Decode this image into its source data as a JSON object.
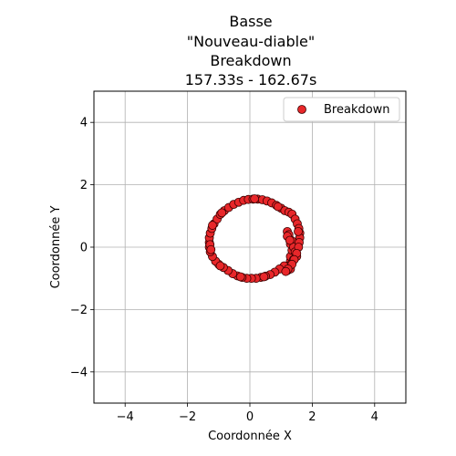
{
  "chart_data": {
    "type": "scatter",
    "title_lines": [
      "Basse",
      "\"Nouveau-diable\"",
      "Breakdown",
      "157.33s - 162.67s"
    ],
    "xlabel": "Coordonnée X",
    "ylabel": "Coordonnée Y",
    "xlim": [
      -5,
      5
    ],
    "ylim": [
      -5,
      5
    ],
    "xticks": [
      -4,
      -2,
      0,
      2,
      4
    ],
    "yticks": [
      -4,
      -2,
      0,
      2,
      4
    ],
    "xtick_labels": [
      "−4",
      "−2",
      "0",
      "2",
      "4"
    ],
    "ytick_labels": [
      "−4",
      "−2",
      "0",
      "2",
      "4"
    ],
    "grid": true,
    "legend_position": "top-right",
    "series": [
      {
        "name": "Breakdown",
        "color": "#e8272a",
        "edge_color": "#3a0000",
        "points": [
          [
            1.3,
            -0.45
          ],
          [
            1.25,
            -0.6
          ],
          [
            1.2,
            -0.75
          ],
          [
            1.3,
            -0.7
          ],
          [
            1.35,
            -0.5
          ],
          [
            1.3,
            -0.3
          ],
          [
            1.35,
            -0.1
          ],
          [
            1.3,
            0.1
          ],
          [
            1.25,
            0.3
          ],
          [
            1.2,
            0.5
          ],
          [
            1.25,
            0.4
          ],
          [
            1.35,
            0.2
          ],
          [
            1.4,
            0.0
          ],
          [
            1.45,
            -0.15
          ],
          [
            1.5,
            -0.3
          ],
          [
            1.4,
            -0.4
          ],
          [
            1.1,
            -0.6
          ],
          [
            0.95,
            -0.7
          ],
          [
            0.8,
            -0.8
          ],
          [
            0.65,
            -0.88
          ],
          [
            0.5,
            -0.93
          ],
          [
            0.35,
            -0.97
          ],
          [
            0.2,
            -1.0
          ],
          [
            0.05,
            -1.0
          ],
          [
            -0.1,
            -1.0
          ],
          [
            -0.25,
            -0.97
          ],
          [
            -0.4,
            -0.92
          ],
          [
            -0.55,
            -0.85
          ],
          [
            -0.7,
            -0.75
          ],
          [
            -0.85,
            -0.65
          ],
          [
            -1.0,
            -0.55
          ],
          [
            -1.1,
            -0.45
          ],
          [
            -1.2,
            -0.3
          ],
          [
            -1.27,
            -0.15
          ],
          [
            -1.3,
            0.0
          ],
          [
            -1.3,
            0.15
          ],
          [
            -1.3,
            0.3
          ],
          [
            -1.27,
            0.45
          ],
          [
            -1.22,
            0.6
          ],
          [
            -1.15,
            0.75
          ],
          [
            -1.05,
            0.9
          ],
          [
            -0.95,
            1.05
          ],
          [
            -0.82,
            1.17
          ],
          [
            -0.68,
            1.27
          ],
          [
            -0.52,
            1.37
          ],
          [
            -0.36,
            1.44
          ],
          [
            -0.2,
            1.5
          ],
          [
            -0.05,
            1.53
          ],
          [
            0.1,
            1.54
          ],
          [
            0.25,
            1.54
          ],
          [
            0.4,
            1.52
          ],
          [
            0.55,
            1.48
          ],
          [
            0.7,
            1.42
          ],
          [
            0.85,
            1.34
          ],
          [
            1.0,
            1.25
          ],
          [
            1.12,
            1.17
          ],
          [
            1.25,
            1.12
          ],
          [
            1.35,
            1.06
          ],
          [
            1.45,
            0.9
          ],
          [
            1.52,
            0.75
          ],
          [
            1.57,
            0.6
          ],
          [
            1.6,
            0.45
          ],
          [
            1.6,
            0.3
          ],
          [
            1.58,
            0.15
          ],
          [
            1.56,
            0.0
          ],
          [
            1.5,
            -0.2
          ],
          [
            1.42,
            -0.4
          ],
          [
            1.35,
            -0.55
          ],
          [
            1.22,
            -0.7
          ],
          [
            1.15,
            -0.78
          ],
          [
            -1.28,
            0.08
          ],
          [
            -1.25,
            -0.08
          ],
          [
            -1.2,
            0.7
          ],
          [
            -0.9,
            1.1
          ],
          [
            0.15,
            1.55
          ],
          [
            0.9,
            1.3
          ],
          [
            1.55,
            0.5
          ],
          [
            0.45,
            -0.95
          ],
          [
            -0.3,
            -0.95
          ],
          [
            -0.95,
            -0.6
          ],
          [
            1.2,
            0.35
          ],
          [
            1.28,
            0.22
          ]
        ]
      }
    ]
  }
}
